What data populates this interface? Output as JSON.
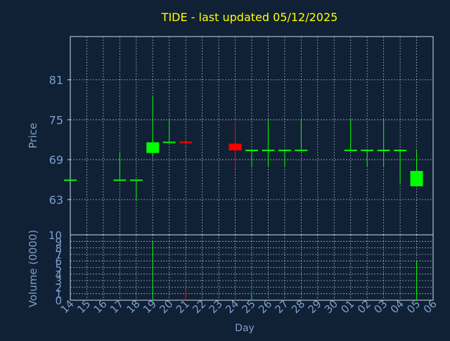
{
  "title": "TIDE - last updated 05/12/2025",
  "colors": {
    "background": "#102035",
    "title": "#ffff00",
    "axis_text": "#7f9fcf",
    "grid": "#d0d8e8",
    "up": "#00ff00",
    "down": "#ff0000"
  },
  "chart_data": {
    "type": "candlestick",
    "title": "TIDE - last updated 05/12/2025",
    "xlabel": "Day",
    "ylabel_price": "Price",
    "ylabel_volume": "Volume (0000)",
    "x_ticks": [
      "14",
      "15",
      "16",
      "17",
      "18",
      "19",
      "20",
      "21",
      "22",
      "23",
      "24",
      "25",
      "26",
      "27",
      "28",
      "29",
      "30",
      "01",
      "02",
      "03",
      "04",
      "05",
      "06"
    ],
    "price_ylim": [
      57.7,
      87.5
    ],
    "price_yticks": [
      63,
      69,
      75,
      81
    ],
    "volume_ylim": [
      0,
      10
    ],
    "volume_yticks": [
      0,
      1,
      2,
      3,
      4,
      5,
      6,
      7,
      8,
      9,
      10
    ],
    "volume_tick_labels": [
      "0",
      "1",
      "2",
      "3",
      "4",
      "5",
      "6",
      "7",
      "8",
      "9",
      "10"
    ],
    "grid": true,
    "candles": [
      {
        "day": "14",
        "open": 65.9,
        "high": 65.9,
        "low": 65.9,
        "close": 65.9,
        "volume": 0
      },
      {
        "day": "17",
        "open": 65.9,
        "high": 70.0,
        "low": 65.9,
        "close": 65.9,
        "volume": 0
      },
      {
        "day": "18",
        "open": 65.9,
        "high": 65.9,
        "low": 62.8,
        "close": 65.9,
        "volume": 0
      },
      {
        "day": "19",
        "open": 70.0,
        "high": 78.6,
        "low": 69.4,
        "close": 71.6,
        "volume": 9.0
      },
      {
        "day": "20",
        "open": 71.6,
        "high": 75.0,
        "low": 71.6,
        "close": 71.6,
        "volume": 0
      },
      {
        "day": "21",
        "open": 71.6,
        "high": 71.6,
        "low": 71.0,
        "close": 71.4,
        "volume": 1.7
      },
      {
        "day": "24",
        "open": 71.4,
        "high": 74.8,
        "low": 67.6,
        "close": 70.4,
        "volume": 0.6
      },
      {
        "day": "25",
        "open": 70.4,
        "high": 70.4,
        "low": 67.8,
        "close": 70.4,
        "volume": 0.8
      },
      {
        "day": "26",
        "open": 70.4,
        "high": 75.0,
        "low": 68.0,
        "close": 70.4,
        "volume": 0
      },
      {
        "day": "27",
        "open": 70.4,
        "high": 70.4,
        "low": 68.0,
        "close": 70.4,
        "volume": 0
      },
      {
        "day": "28",
        "open": 70.4,
        "high": 75.0,
        "low": 70.4,
        "close": 70.4,
        "volume": 0
      },
      {
        "day": "01",
        "open": 70.4,
        "high": 75.0,
        "low": 70.4,
        "close": 70.4,
        "volume": 0
      },
      {
        "day": "02",
        "open": 70.4,
        "high": 70.4,
        "low": 68.0,
        "close": 70.4,
        "volume": 0
      },
      {
        "day": "03",
        "open": 70.4,
        "high": 75.0,
        "low": 68.0,
        "close": 70.4,
        "volume": 0
      },
      {
        "day": "04",
        "open": 70.4,
        "high": 70.4,
        "low": 65.5,
        "close": 70.4,
        "volume": 0
      },
      {
        "day": "05",
        "open": 65.0,
        "high": 70.4,
        "low": 65.0,
        "close": 67.3,
        "volume": 6.0
      }
    ]
  }
}
